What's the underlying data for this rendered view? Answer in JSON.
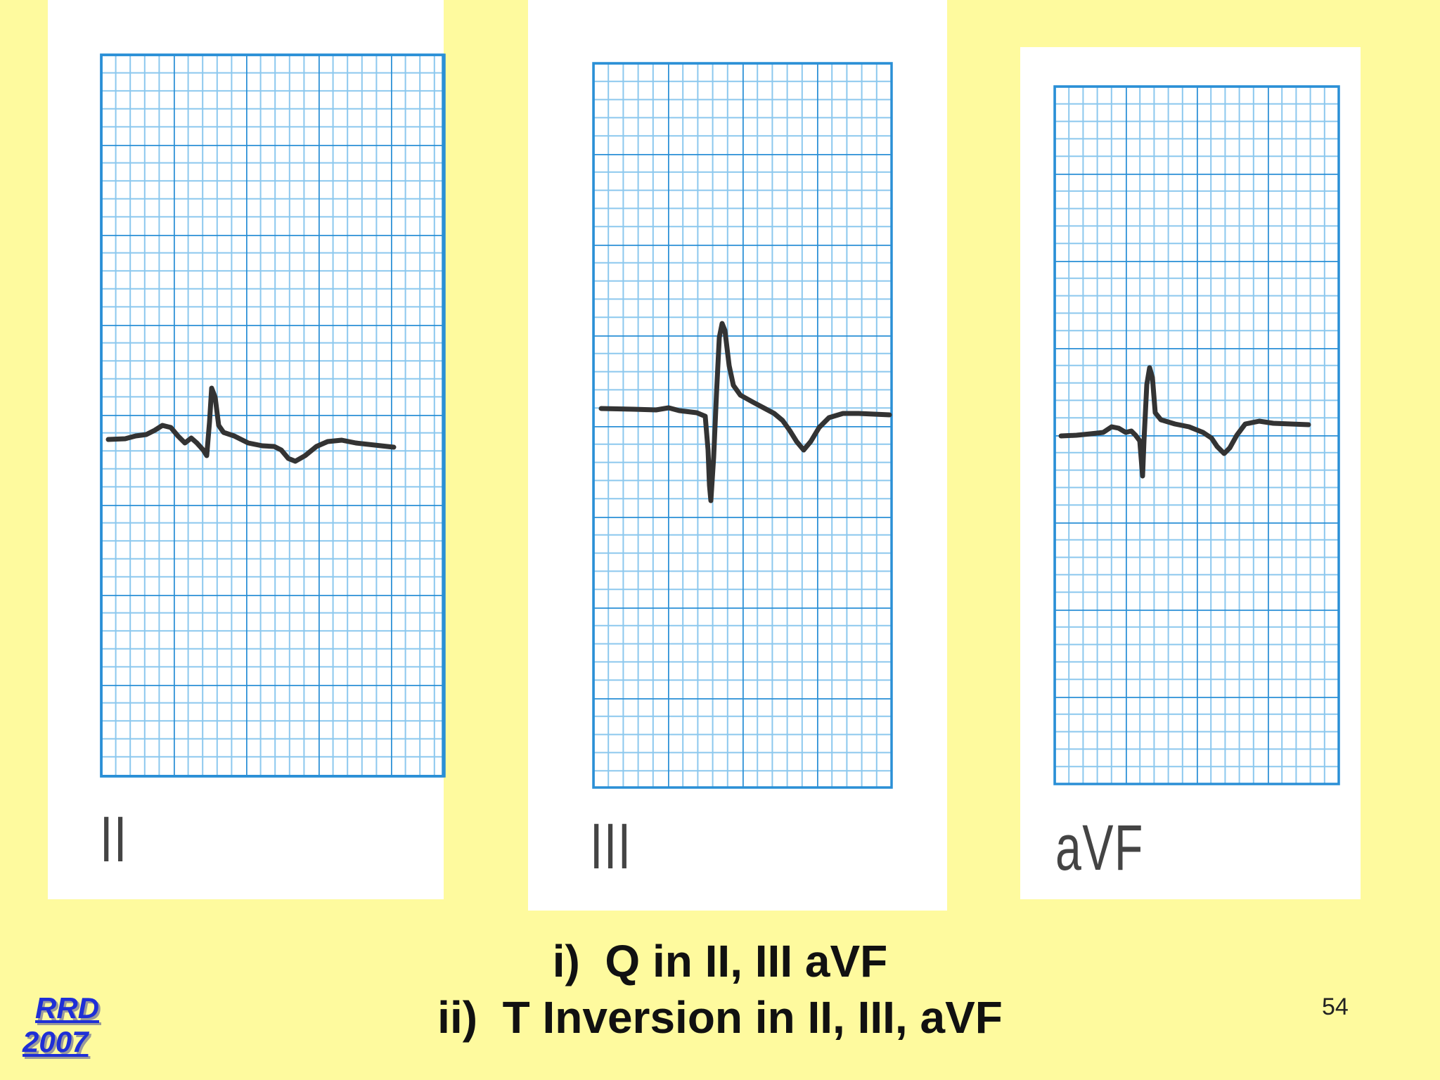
{
  "slide": {
    "background_color": "#fefa9e",
    "page_number": "54"
  },
  "leads": [
    {
      "label": "II"
    },
    {
      "label": "III"
    },
    {
      "label": "aVF"
    }
  ],
  "caption": {
    "line1": "i)  Q in II, III aVF",
    "line2": "ii)  T Inversion in II, III, aVF"
  },
  "logo": {
    "line1": "RRD",
    "line2": "2007"
  },
  "colors": {
    "grid_major": "#2a8fd6",
    "grid_minor": "#8cc8ee",
    "trace": "#333333",
    "logo": "#1f2fd6"
  }
}
